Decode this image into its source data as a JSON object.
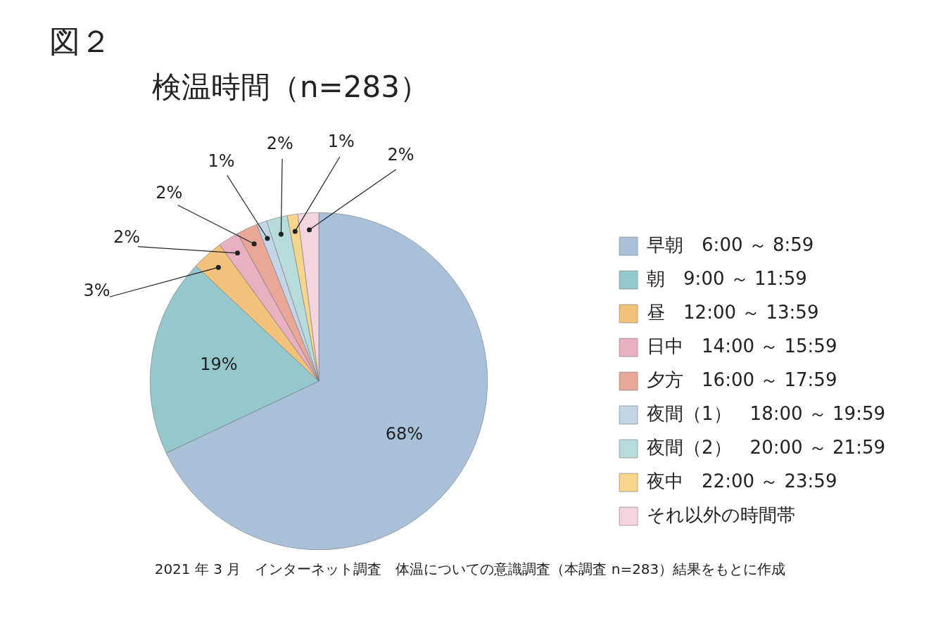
{
  "chart_data": {
    "type": "pie",
    "title": "図２",
    "subtitle": "検温時間（n=283）",
    "categories": [
      "早朝　6:00 ～ 8:59",
      "朝　9:00 ～ 11:59",
      "昼　12:00 ～ 13:59",
      "日中　14:00 ～ 15:59",
      "夕方　16:00 ～ 17:59",
      "夜間（1）　18:00 ～ 19:59",
      "夜間（2）　20:00 ～ 21:59",
      "夜中　22:00 ～ 23:59",
      "それ以外の時間帯"
    ],
    "values": [
      68,
      19,
      3,
      2,
      2,
      1,
      2,
      1,
      2
    ],
    "colors": [
      "#a9c0d9",
      "#94c8cd",
      "#f2c27a",
      "#e8b0c0",
      "#e8a797",
      "#c3d6e8",
      "#b7dadb",
      "#f8d58c",
      "#f4d4de"
    ],
    "value_labels": [
      "68%",
      "19%",
      "3%",
      "2%",
      "2%",
      "1%",
      "2%",
      "1%",
      "2%"
    ],
    "legend": "right",
    "annotations": [
      "2021 年 3 月　インターネット調査　体温についての意識調査（本調査 n=283）結果をもとに作成"
    ]
  }
}
